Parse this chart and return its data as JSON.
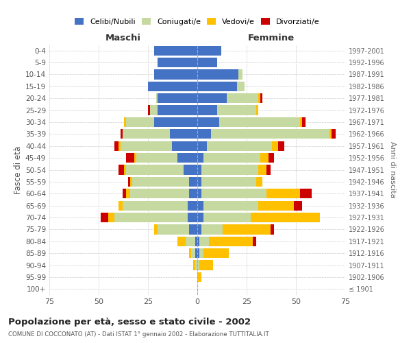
{
  "age_groups": [
    "100+",
    "95-99",
    "90-94",
    "85-89",
    "80-84",
    "75-79",
    "70-74",
    "65-69",
    "60-64",
    "55-59",
    "50-54",
    "45-49",
    "40-44",
    "35-39",
    "30-34",
    "25-29",
    "20-24",
    "15-19",
    "10-14",
    "5-9",
    "0-4"
  ],
  "birth_years": [
    "≤ 1901",
    "1902-1906",
    "1907-1911",
    "1912-1916",
    "1917-1921",
    "1922-1926",
    "1927-1931",
    "1932-1936",
    "1937-1941",
    "1942-1946",
    "1947-1951",
    "1952-1956",
    "1957-1961",
    "1962-1966",
    "1967-1971",
    "1972-1976",
    "1977-1981",
    "1982-1986",
    "1987-1991",
    "1992-1996",
    "1997-2001"
  ],
  "maschi": {
    "celibi": [
      0,
      0,
      0,
      1,
      1,
      4,
      5,
      5,
      4,
      4,
      7,
      10,
      13,
      14,
      22,
      20,
      20,
      25,
      22,
      20,
      22
    ],
    "coniugati": [
      0,
      0,
      1,
      2,
      5,
      16,
      37,
      33,
      30,
      29,
      29,
      21,
      26,
      24,
      14,
      4,
      1,
      0,
      0,
      0,
      0
    ],
    "vedovi": [
      0,
      0,
      1,
      1,
      4,
      2,
      3,
      2,
      2,
      1,
      1,
      1,
      1,
      0,
      1,
      0,
      0,
      0,
      0,
      0,
      0
    ],
    "divorziati": [
      0,
      0,
      0,
      0,
      0,
      0,
      4,
      0,
      2,
      1,
      3,
      4,
      2,
      1,
      0,
      1,
      0,
      0,
      0,
      0,
      0
    ]
  },
  "femmine": {
    "nubili": [
      0,
      0,
      0,
      1,
      1,
      2,
      3,
      3,
      2,
      2,
      2,
      3,
      5,
      7,
      11,
      10,
      15,
      20,
      21,
      10,
      12
    ],
    "coniugate": [
      0,
      0,
      1,
      2,
      5,
      11,
      24,
      28,
      33,
      28,
      29,
      29,
      33,
      60,
      41,
      20,
      16,
      4,
      2,
      0,
      0
    ],
    "vedove": [
      0,
      2,
      7,
      13,
      22,
      24,
      35,
      18,
      17,
      3,
      4,
      4,
      3,
      1,
      1,
      1,
      1,
      0,
      0,
      0,
      0
    ],
    "divorziate": [
      0,
      0,
      0,
      0,
      2,
      2,
      0,
      4,
      6,
      0,
      2,
      3,
      3,
      2,
      2,
      0,
      1,
      0,
      0,
      0,
      0
    ]
  },
  "colors": {
    "celibi_nubili": "#4472C4",
    "coniugati": "#C5D9A0",
    "vedovi": "#FFC000",
    "divorziati": "#CC0000"
  },
  "xlim": 75,
  "title": "Popolazione per età, sesso e stato civile - 2002",
  "subtitle": "COMUNE DI COCCONATO (AT) - Dati ISTAT 1° gennaio 2002 - Elaborazione TUTTITALIA.IT",
  "xlabel_left": "Maschi",
  "xlabel_right": "Femmine",
  "ylabel": "Fasce di età",
  "ylabel_right": "Anni di nascita",
  "background_color": "#ffffff",
  "grid_color": "#cccccc"
}
